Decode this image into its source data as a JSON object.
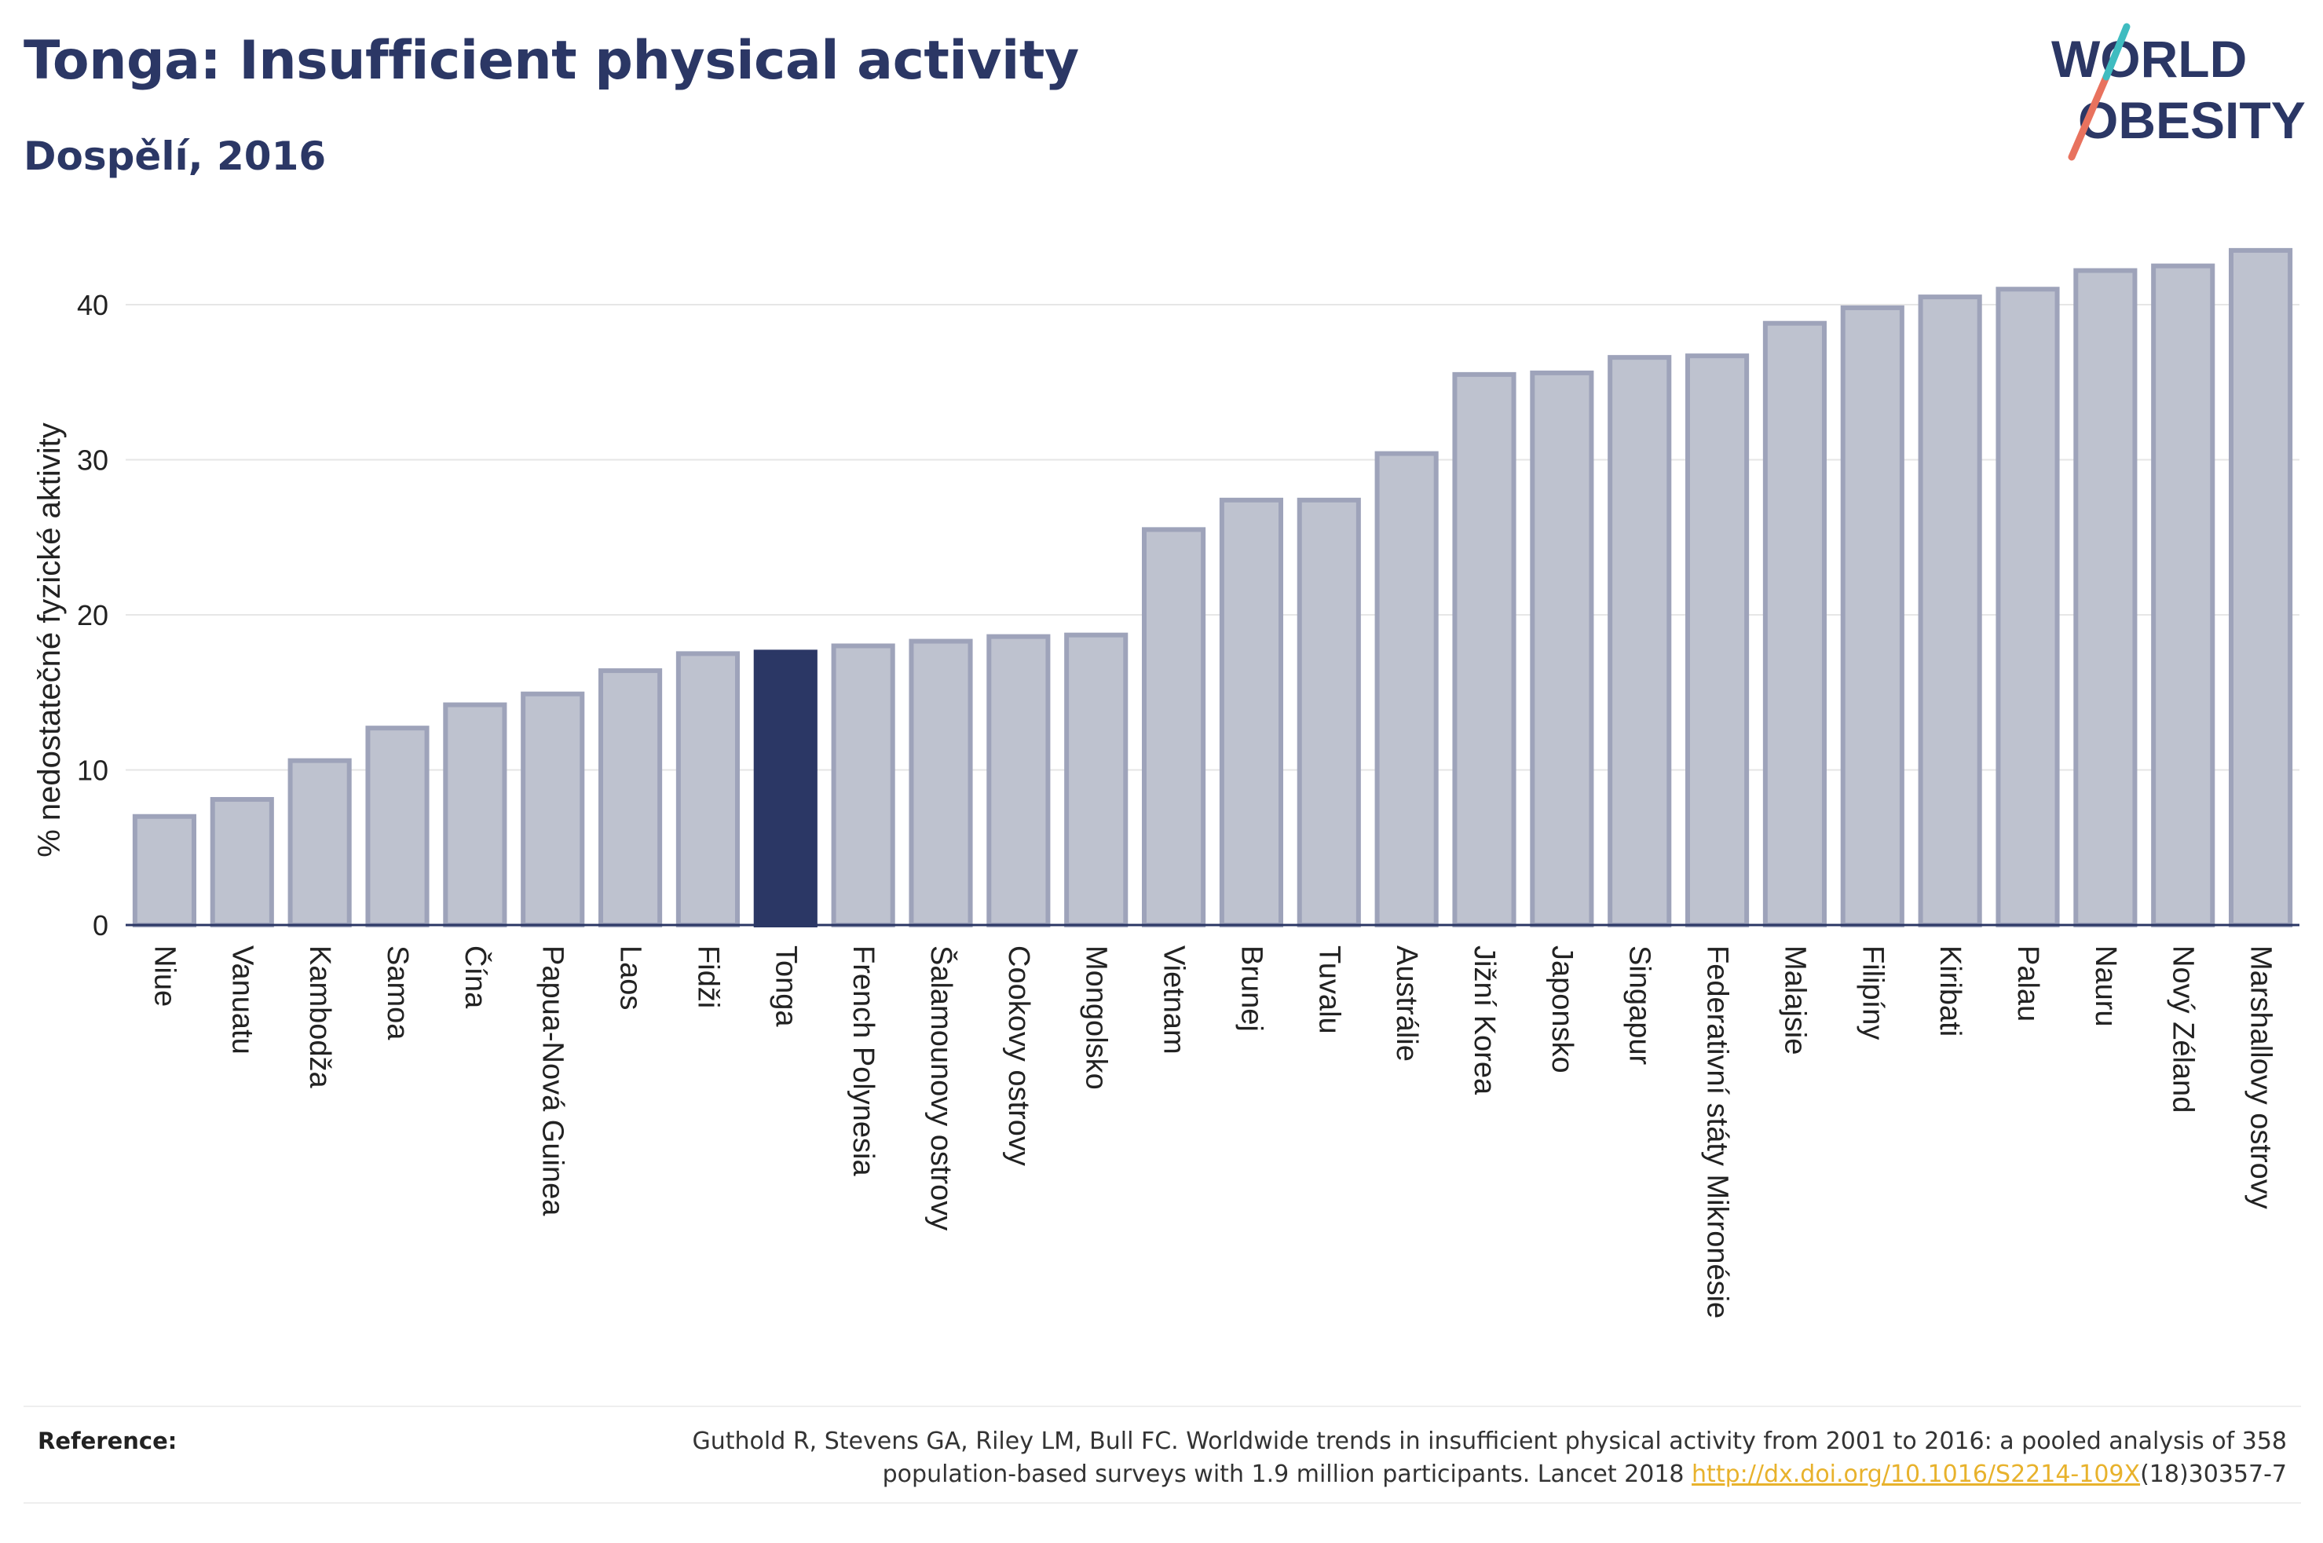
{
  "header": {
    "title": "Tonga: Insufficient physical activity",
    "subtitle": "Dospělí, 2016"
  },
  "logo": {
    "line1": "WORLD",
    "line2": "OBESITY",
    "slash_colors": [
      "#e8725e",
      "#3fbcc0"
    ],
    "text_color": "#2b3765"
  },
  "footer": {
    "ref_label": "Reference:",
    "ref_text_before": "Guthold R, Stevens GA, Riley LM, Bull FC. Worldwide trends in insufficient physical activity from 2001 to 2016: a pooled analysis of 358 population-based surveys with 1.9 million participants. Lancet 2018 ",
    "ref_link": "http://dx.doi.org/10.1016/S2214-109X",
    "ref_text_after": "(18)30357-7"
  },
  "colors": {
    "bar": "#bec2cf",
    "bar_stroke": "#9ea3ba",
    "highlight": "#2b3765",
    "text": "#2b3765",
    "link": "#e8b22c"
  },
  "chart_data": {
    "type": "bar",
    "title": "Tonga: Insufficient physical activity",
    "subtitle": "Dospělí, 2016",
    "xlabel": "",
    "ylabel": "% nedostatečné fyzické aktivity",
    "ylim": [
      0,
      45
    ],
    "yticks": [
      0,
      10,
      20,
      30,
      40
    ],
    "grid": true,
    "highlight": "Tonga",
    "categories": [
      "Niue",
      "Vanuatu",
      "Kambodža",
      "Samoa",
      "Čína",
      "Papua-Nová Guinea",
      "Laos",
      "Fidži",
      "Tonga",
      "French Polynesia",
      "Šalamounovy ostrovy",
      "Cookovy ostrovy",
      "Mongolsko",
      "Vietnam",
      "Brunej",
      "Tuvalu",
      "Austrálie",
      "Jižní Korea",
      "Japonsko",
      "Singapur",
      "Federativní státy Mikronésie",
      "Malajsie",
      "Filipíny",
      "Kiribati",
      "Palau",
      "Nauru",
      "Nový Zéland",
      "Marshallovy ostrovy"
    ],
    "values": [
      7.0,
      8.1,
      10.6,
      12.7,
      14.2,
      14.9,
      16.4,
      17.5,
      17.6,
      18.0,
      18.3,
      18.6,
      18.7,
      25.5,
      27.4,
      27.4,
      30.4,
      35.5,
      35.6,
      36.6,
      36.7,
      38.8,
      39.8,
      40.5,
      41.0,
      42.2,
      42.5,
      43.5
    ]
  }
}
